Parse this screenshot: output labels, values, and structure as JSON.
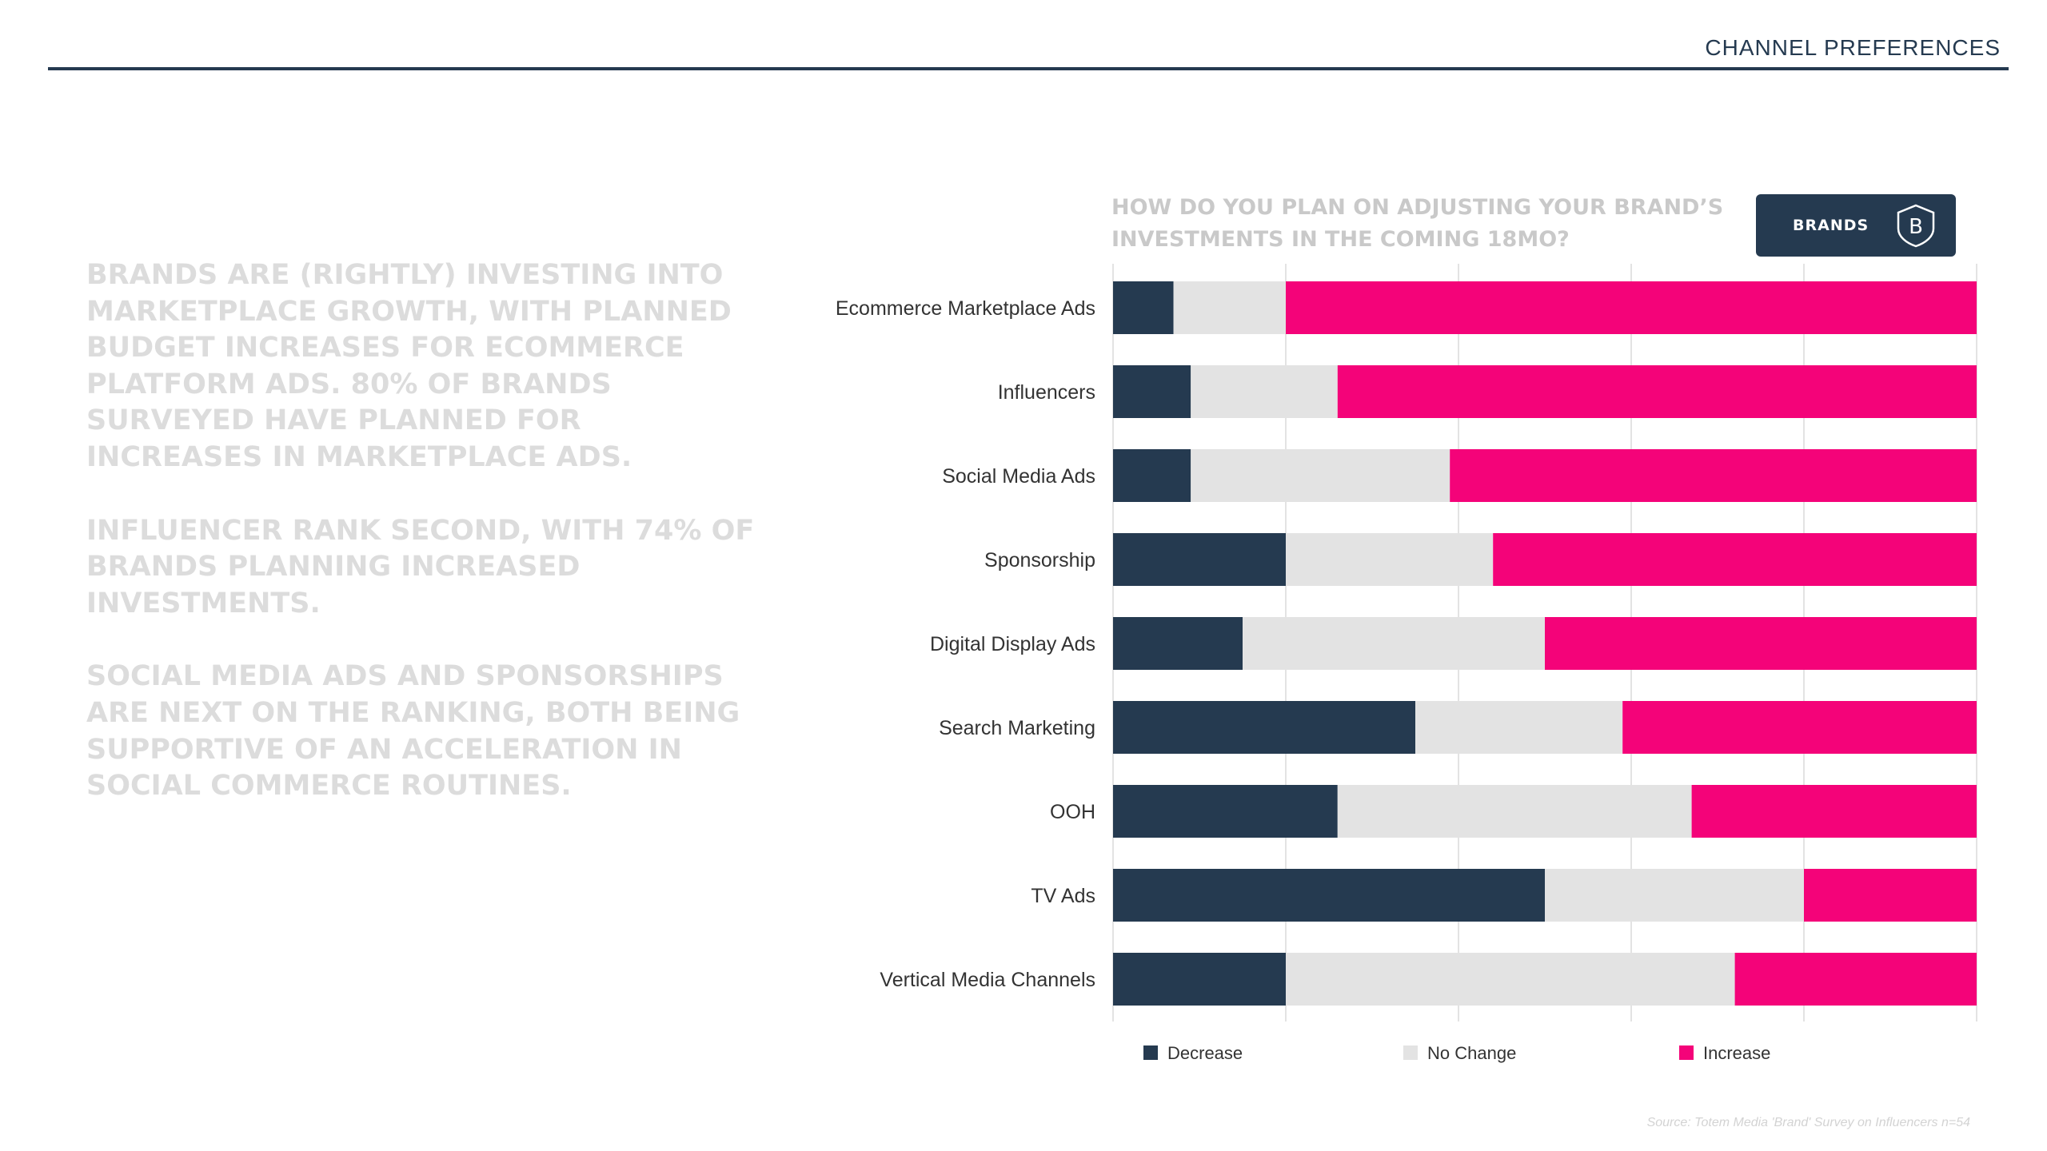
{
  "header": {
    "title": "CHANNEL PREFERENCES"
  },
  "narrative": {
    "paragraphs": [
      "BRANDS ARE (RIGHTLY) INVESTING INTO MARKETPLACE GROWTH, WITH PLANNED BUDGET INCREASES FOR ECOMMERCE PLATFORM ADS. 80% OF BRANDS SURVEYED HAVE PLANNED FOR INCREASES IN MARKETPLACE ADS.",
      "INFLUENCER RANK SECOND, WITH 74% OF BRANDS PLANNING INCREASED INVESTMENTS.",
      "SOCIAL MEDIA ADS AND SPONSORSHIPS ARE NEXT ON THE RANKING, BOTH BEING SUPPORTIVE OF AN ACCELERATION IN SOCIAL COMMERCE ROUTINES."
    ]
  },
  "badge": {
    "label": "BRANDS",
    "icon": "shield-b-icon"
  },
  "source": "Source: Totem Media 'Brand' Survey on Influencers n=54",
  "colors": {
    "decrease": "#253a50",
    "no_change": "#e3e3e3",
    "increase": "#f40379",
    "grid": "#e3e3e3",
    "label": "#333333"
  },
  "chart_data": {
    "type": "bar",
    "orientation": "horizontal",
    "stacked": true,
    "title": "HOW DO YOU PLAN ON ADJUSTING YOUR BRAND’S INVESTMENTS IN THE COMING 18MO?",
    "categories": [
      "Ecommerce Marketplace Ads",
      "Influencers",
      "Social Media Ads",
      "Sponsorship",
      "Digital Display Ads",
      "Search Marketing",
      "OOH",
      "TV Ads",
      "Vertical Media Channels"
    ],
    "series": [
      {
        "name": "Decrease",
        "color": "#253a50",
        "values": [
          7,
          9,
          9,
          20,
          15,
          35,
          26,
          50,
          20
        ]
      },
      {
        "name": "No Change",
        "color": "#e3e3e3",
        "values": [
          13,
          17,
          30,
          24,
          35,
          24,
          41,
          30,
          52
        ]
      },
      {
        "name": "Increase",
        "color": "#f40379",
        "values": [
          80,
          74,
          61,
          56,
          50,
          41,
          33,
          20,
          28
        ]
      }
    ],
    "xlim": [
      0,
      100
    ],
    "grid": true,
    "legend_position": "bottom"
  }
}
